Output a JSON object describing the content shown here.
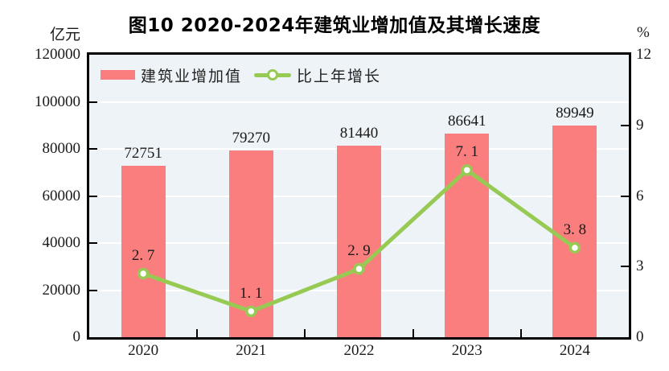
{
  "title": "图10  2020-2024年建筑业增加值及其增长速度",
  "left_axis": {
    "unit": "亿元",
    "tick_labels": [
      "0",
      "20000",
      "40000",
      "60000",
      "80000",
      "100000",
      "120000"
    ],
    "tick_values": [
      0,
      20000,
      40000,
      60000,
      80000,
      100000,
      120000
    ]
  },
  "right_axis": {
    "unit": "%",
    "tick_labels": [
      "0",
      "3",
      "6",
      "9",
      "12"
    ],
    "tick_values": [
      0,
      3,
      6,
      9,
      12
    ]
  },
  "legend": {
    "bar_label": "建筑业增加值",
    "line_label": "比上年增长"
  },
  "colors": {
    "bar": "#FB7E7E",
    "line": "#97CA53",
    "marker_fill": "#FFFFFF",
    "plot_bg": "#EDF3F6",
    "gridline": "#FFFFFF",
    "frame": "#000000",
    "text": "#1A1A1A"
  },
  "chart_data": {
    "type": "bar+line",
    "title": "图10 2020-2024年建筑业增加值及其增长速度",
    "categories": [
      "2020",
      "2021",
      "2022",
      "2023",
      "2024"
    ],
    "series": [
      {
        "name": "建筑业增加值",
        "type": "bar",
        "axis": "left",
        "unit": "亿元",
        "values": [
          72751,
          79270,
          81440,
          86641,
          89949
        ],
        "labels": [
          "72751",
          "79270",
          "81440",
          "86641",
          "89949"
        ]
      },
      {
        "name": "比上年增长",
        "type": "line",
        "axis": "right",
        "unit": "%",
        "values": [
          2.7,
          1.1,
          2.9,
          7.1,
          3.8
        ],
        "labels": [
          "2. 7",
          "1. 1",
          "2. 9",
          "7. 1",
          "3. 8"
        ]
      }
    ],
    "ylim_left": [
      0,
      120000
    ],
    "ylim_right": [
      0,
      12
    ],
    "grid": true,
    "gridline_values_left": [
      20000,
      40000,
      60000,
      80000,
      100000
    ],
    "legend_position": "inside-top-left"
  }
}
